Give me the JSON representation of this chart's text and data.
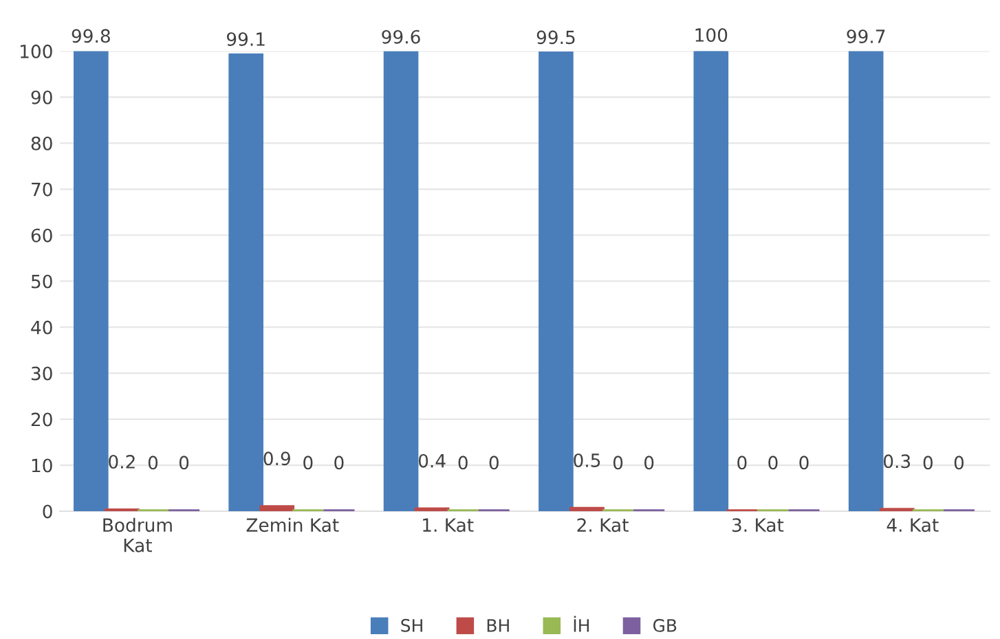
{
  "chart_data": {
    "type": "bar",
    "categories": [
      "Bodrum\nKat",
      "Zemin Kat",
      "1. Kat",
      "2. Kat",
      "3. Kat",
      "4. Kat"
    ],
    "series": [
      {
        "name": "SH",
        "color": "#4a7ebb",
        "values": [
          99.8,
          99.1,
          99.6,
          99.5,
          100,
          99.7
        ]
      },
      {
        "name": "BH",
        "color": "#be4b48",
        "values": [
          0.2,
          0.9,
          0.4,
          0.5,
          0,
          0.3
        ]
      },
      {
        "name": "İH",
        "color": "#98b954",
        "values": [
          0,
          0,
          0,
          0,
          0,
          0
        ]
      },
      {
        "name": "GB",
        "color": "#7d60a0",
        "values": [
          0,
          0,
          0,
          0,
          0,
          0
        ]
      }
    ],
    "ylim": [
      0,
      100
    ],
    "yticks": [
      0,
      10,
      20,
      30,
      40,
      50,
      60,
      70,
      80,
      90,
      100
    ],
    "grid": "y",
    "legend": "bottom",
    "data_labels": true
  }
}
